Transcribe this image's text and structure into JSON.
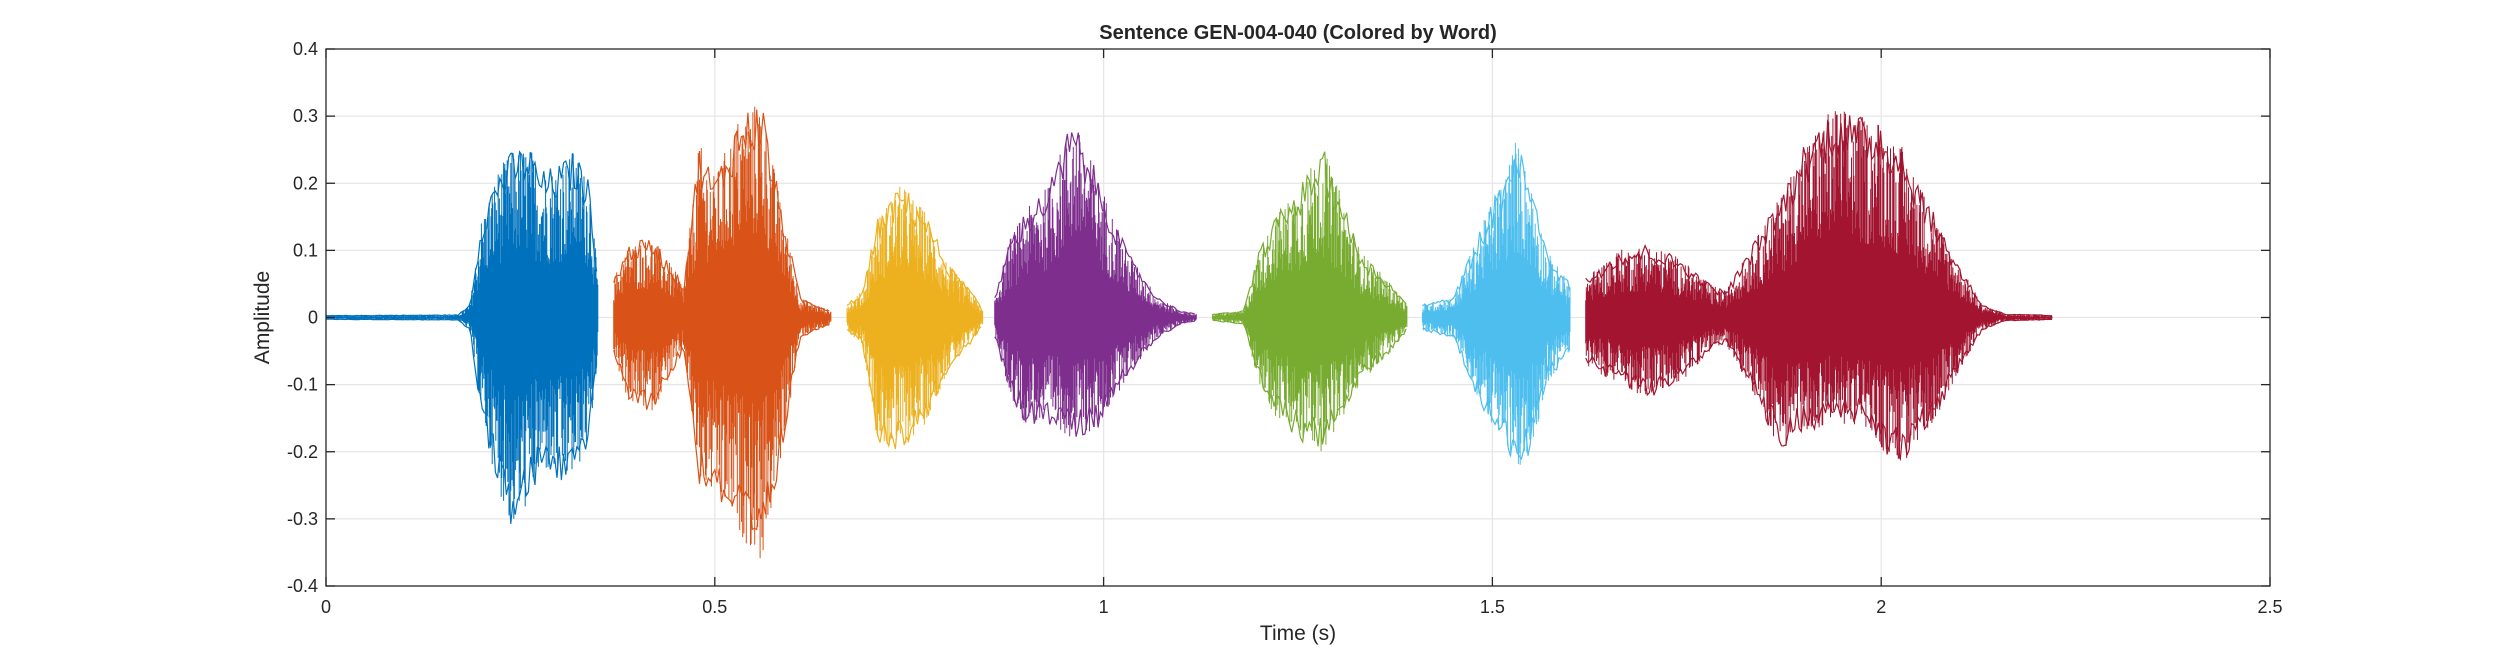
{
  "chart_data": {
    "type": "line",
    "title": "Sentence GEN-004-040 (Colored by Word)",
    "xlabel": "Time (s)",
    "ylabel": "Amplitude",
    "xlim": [
      0,
      2.5
    ],
    "ylim": [
      -0.4,
      0.4
    ],
    "xticks": [
      0,
      0.5,
      1,
      1.5,
      2,
      2.5
    ],
    "xtick_labels": [
      "0",
      "0.5",
      "1",
      "1.5",
      "2",
      "2.5"
    ],
    "yticks": [
      0.4,
      0.3,
      0.2,
      0.1,
      0,
      -0.1,
      -0.2,
      -0.3,
      -0.4
    ],
    "ytick_labels": [
      "0.4",
      "0.3",
      "0.2",
      "0.1",
      "0",
      "-0.1",
      "-0.2",
      "-0.3",
      "-0.4"
    ],
    "grid": true,
    "series": [
      {
        "color": "#0072BD",
        "x_start": 0.0,
        "x_end": 0.35,
        "envelope_x": [
          0.0,
          0.17,
          0.185,
          0.2,
          0.22,
          0.24,
          0.26,
          0.28,
          0.3,
          0.32,
          0.34,
          0.35
        ],
        "envelope_upper": [
          0.003,
          0.004,
          0.02,
          0.15,
          0.22,
          0.25,
          0.26,
          0.22,
          0.23,
          0.25,
          0.2,
          0.05
        ],
        "envelope_lower": [
          -0.003,
          -0.004,
          -0.02,
          -0.15,
          -0.25,
          -0.32,
          -0.28,
          -0.23,
          -0.25,
          -0.24,
          -0.18,
          -0.05
        ]
      },
      {
        "color": "#D95319",
        "x_start": 0.37,
        "x_end": 0.65,
        "envelope_x": [
          0.37,
          0.39,
          0.42,
          0.46,
          0.48,
          0.5,
          0.53,
          0.56,
          0.58,
          0.61,
          0.63,
          0.65
        ],
        "envelope_upper": [
          0.06,
          0.11,
          0.12,
          0.05,
          0.26,
          0.21,
          0.3,
          0.33,
          0.2,
          0.03,
          0.02,
          0.01
        ],
        "envelope_lower": [
          -0.06,
          -0.13,
          -0.14,
          -0.05,
          -0.25,
          -0.27,
          -0.32,
          -0.37,
          -0.25,
          -0.03,
          -0.02,
          -0.01
        ]
      },
      {
        "color": "#EDB120",
        "x_start": 0.67,
        "x_end": 0.845,
        "envelope_x": [
          0.67,
          0.69,
          0.71,
          0.74,
          0.77,
          0.8,
          0.83,
          0.845
        ],
        "envelope_upper": [
          0.02,
          0.04,
          0.15,
          0.2,
          0.16,
          0.08,
          0.04,
          0.01
        ],
        "envelope_lower": [
          -0.02,
          -0.04,
          -0.19,
          -0.2,
          -0.16,
          -0.08,
          -0.04,
          -0.01
        ]
      },
      {
        "color": "#7E2F8E",
        "x_start": 0.86,
        "x_end": 1.12,
        "envelope_x": [
          0.86,
          0.88,
          0.9,
          0.93,
          0.96,
          0.99,
          1.03,
          1.07,
          1.1,
          1.12
        ],
        "envelope_upper": [
          0.03,
          0.12,
          0.16,
          0.2,
          0.3,
          0.22,
          0.1,
          0.03,
          0.01,
          0.005
        ],
        "envelope_lower": [
          -0.03,
          -0.12,
          -0.16,
          -0.16,
          -0.18,
          -0.17,
          -0.09,
          -0.03,
          -0.01,
          -0.005
        ]
      },
      {
        "color": "#77AC30",
        "x_start": 1.14,
        "x_end": 1.39,
        "envelope_x": [
          1.14,
          1.18,
          1.2,
          1.22,
          1.26,
          1.28,
          1.3,
          1.33,
          1.37,
          1.39
        ],
        "envelope_upper": [
          0.005,
          0.01,
          0.1,
          0.15,
          0.21,
          0.26,
          0.2,
          0.1,
          0.05,
          0.02
        ],
        "envelope_lower": [
          -0.005,
          -0.01,
          -0.1,
          -0.15,
          -0.19,
          -0.2,
          -0.17,
          -0.1,
          -0.05,
          -0.02
        ]
      },
      {
        "color": "#4DBEEE",
        "x_start": 1.41,
        "x_end": 1.6,
        "envelope_x": [
          1.41,
          1.45,
          1.48,
          1.51,
          1.53,
          1.55,
          1.57,
          1.6
        ],
        "envelope_upper": [
          0.02,
          0.03,
          0.12,
          0.2,
          0.27,
          0.2,
          0.1,
          0.05
        ],
        "envelope_lower": [
          -0.02,
          -0.03,
          -0.12,
          -0.18,
          -0.24,
          -0.2,
          -0.1,
          -0.05
        ]
      },
      {
        "color": "#A2142F",
        "x_start": 1.62,
        "x_end": 2.22,
        "envelope_x": [
          1.62,
          1.66,
          1.7,
          1.74,
          1.78,
          1.8,
          1.83,
          1.87,
          1.9,
          1.94,
          1.97,
          2.0,
          2.03,
          2.07,
          2.1,
          2.13,
          2.16,
          2.2,
          2.22
        ],
        "envelope_upper": [
          0.06,
          0.1,
          0.11,
          0.09,
          0.05,
          0.04,
          0.1,
          0.18,
          0.26,
          0.32,
          0.3,
          0.3,
          0.25,
          0.15,
          0.08,
          0.02,
          0.005,
          0.004,
          0.003
        ],
        "envelope_lower": [
          -0.07,
          -0.1,
          -0.12,
          -0.1,
          -0.05,
          -0.04,
          -0.1,
          -0.2,
          -0.17,
          -0.16,
          -0.16,
          -0.2,
          -0.22,
          -0.15,
          -0.08,
          -0.02,
          -0.005,
          -0.004,
          -0.003
        ]
      }
    ]
  }
}
